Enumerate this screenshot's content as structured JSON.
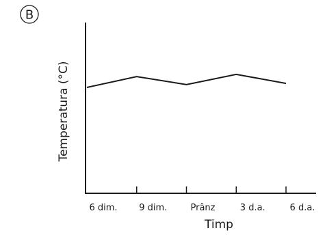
{
  "panel": {
    "letter": "B"
  },
  "chart_data": {
    "type": "line",
    "title": "",
    "xlabel": "Timp",
    "ylabel": "Temperatura (°C)",
    "categories": [
      "6 dim.",
      "9 dim.",
      "Prânz",
      "3 d.a.",
      "6 d.a."
    ],
    "series": [
      {
        "name": "",
        "values": [
          37.2,
          41.0,
          38.2,
          41.8,
          38.6
        ]
      }
    ],
    "ylim": [
      0,
      60
    ],
    "grid": false,
    "y_tick_labels_shown": false
  }
}
